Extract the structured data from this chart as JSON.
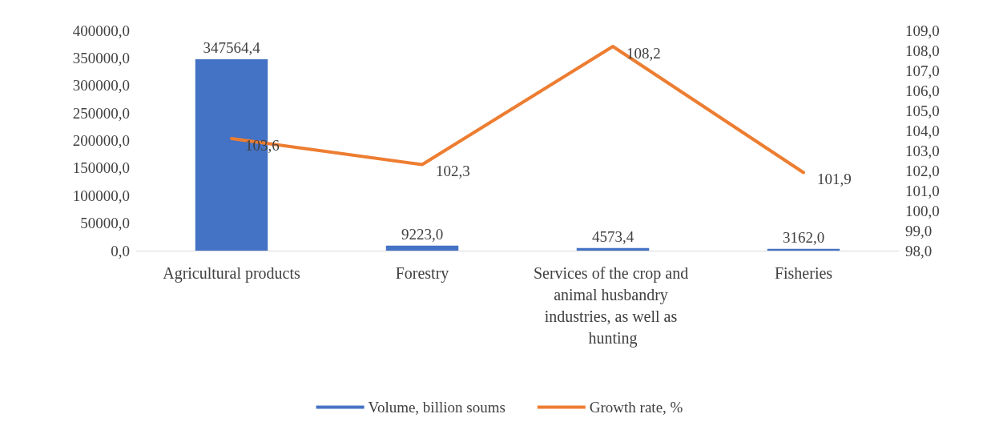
{
  "chart_data": {
    "type": "bar",
    "categories": [
      "Agricultural products",
      "Forestry",
      "Services of the crop and animal husbandry industries, as well as hunting",
      "Fisheries"
    ],
    "series": [
      {
        "name": "Volume, billion soums",
        "color": "#4472c4",
        "values": [
          347564.4,
          9223.0,
          4573.4,
          3162.0
        ],
        "value_labels": [
          "347564,4",
          "9223,0",
          "4573,4",
          "3162,0"
        ]
      },
      {
        "name": "Growth rate, %",
        "type": "line",
        "axis": "y2",
        "color": "#ed7d31",
        "values": [
          103.6,
          102.3,
          108.2,
          101.9
        ],
        "value_labels": [
          "103,6",
          "102,3",
          "108,2",
          "101,9"
        ]
      }
    ],
    "ylim": [
      0,
      400000
    ],
    "yticks": [
      {
        "value": 0,
        "label": "0,0"
      },
      {
        "value": 50000,
        "label": "50000,0"
      },
      {
        "value": 100000,
        "label": "100000,0"
      },
      {
        "value": 150000,
        "label": "150000,0"
      },
      {
        "value": 200000,
        "label": "200000,0"
      },
      {
        "value": 250000,
        "label": "250000,0"
      },
      {
        "value": 300000,
        "label": "300000,0"
      },
      {
        "value": 350000,
        "label": "350000,0"
      },
      {
        "value": 400000,
        "label": "400000,0"
      }
    ],
    "y2lim": [
      98,
      109
    ],
    "y2ticks": [
      {
        "value": 98,
        "label": "98,0"
      },
      {
        "value": 99,
        "label": "99,0"
      },
      {
        "value": 100,
        "label": "100,0"
      },
      {
        "value": 101,
        "label": "101,0"
      },
      {
        "value": 102,
        "label": "102,0"
      },
      {
        "value": 103,
        "label": "103,0"
      },
      {
        "value": 104,
        "label": "104,0"
      },
      {
        "value": 105,
        "label": "105,0"
      },
      {
        "value": 106,
        "label": "106,0"
      },
      {
        "value": 107,
        "label": "107,0"
      },
      {
        "value": 108,
        "label": "108,0"
      },
      {
        "value": 109,
        "label": "109,0"
      }
    ],
    "grid": false,
    "legend": "bottom",
    "marker": "none",
    "line_style": "solid"
  }
}
